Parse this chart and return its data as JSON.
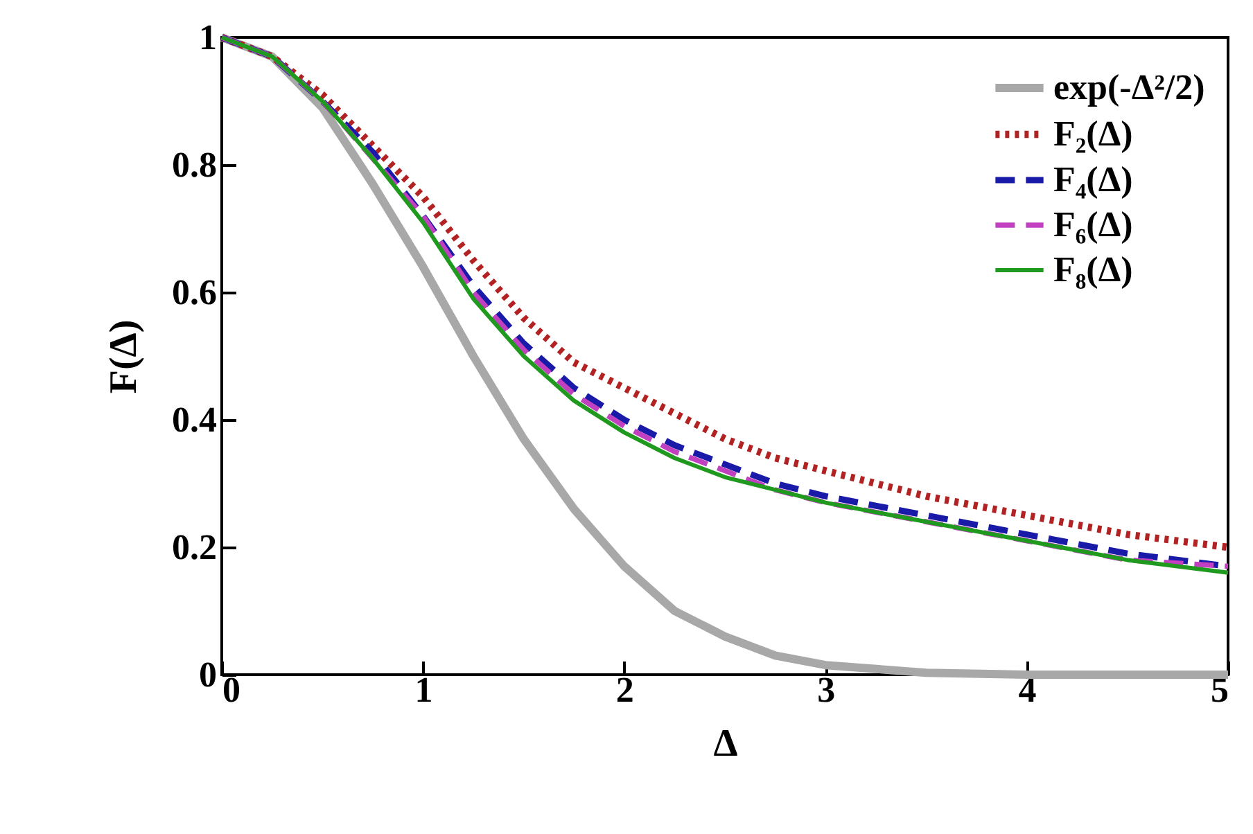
{
  "chart_data": {
    "type": "line",
    "xlabel": "Δ",
    "ylabel": "F(Δ)",
    "x": [
      0,
      0.25,
      0.5,
      0.75,
      1,
      1.25,
      1.5,
      1.75,
      2,
      2.25,
      2.5,
      2.75,
      3,
      3.5,
      4,
      4.5,
      5
    ],
    "xlim": [
      0,
      5
    ],
    "xticks": [
      0,
      1,
      2,
      3,
      4,
      5
    ],
    "ylim": [
      0,
      1
    ],
    "yticks": [
      0,
      0.2,
      0.4,
      0.6,
      0.8,
      1
    ],
    "grid": false,
    "legend": "top right",
    "marker": "none",
    "series": [
      {
        "name": "exp(-Δ²/2)",
        "color": "#a8a8a8",
        "line_style": "solid",
        "values": [
          1,
          0.97,
          0.89,
          0.77,
          0.64,
          0.5,
          0.37,
          0.26,
          0.17,
          0.1,
          0.06,
          0.03,
          0.015,
          0.003,
          0,
          0,
          0
        ]
      },
      {
        "name": "F₂(Δ)",
        "color": "#b22222",
        "line_style": "dotted",
        "values": [
          1,
          0.97,
          0.91,
          0.83,
          0.75,
          0.65,
          0.56,
          0.49,
          0.45,
          0.41,
          0.37,
          0.34,
          0.32,
          0.28,
          0.25,
          0.22,
          0.2
        ]
      },
      {
        "name": "F₄(Δ)",
        "color": "#1a1aa8",
        "line_style": "dashed",
        "values": [
          1,
          0.97,
          0.9,
          0.82,
          0.72,
          0.61,
          0.52,
          0.45,
          0.4,
          0.36,
          0.33,
          0.3,
          0.28,
          0.25,
          0.22,
          0.19,
          0.17
        ]
      },
      {
        "name": "F₆(Δ)",
        "color": "#c040c0",
        "line_style": "dashed",
        "values": [
          1,
          0.97,
          0.9,
          0.81,
          0.72,
          0.6,
          0.51,
          0.44,
          0.39,
          0.35,
          0.32,
          0.29,
          0.27,
          0.24,
          0.21,
          0.18,
          0.17
        ]
      },
      {
        "name": "F₈(Δ)",
        "color": "#1f9a1f",
        "line_style": "solid",
        "values": [
          1,
          0.97,
          0.9,
          0.81,
          0.71,
          0.59,
          0.5,
          0.43,
          0.38,
          0.34,
          0.31,
          0.29,
          0.27,
          0.24,
          0.21,
          0.18,
          0.16
        ]
      }
    ]
  }
}
